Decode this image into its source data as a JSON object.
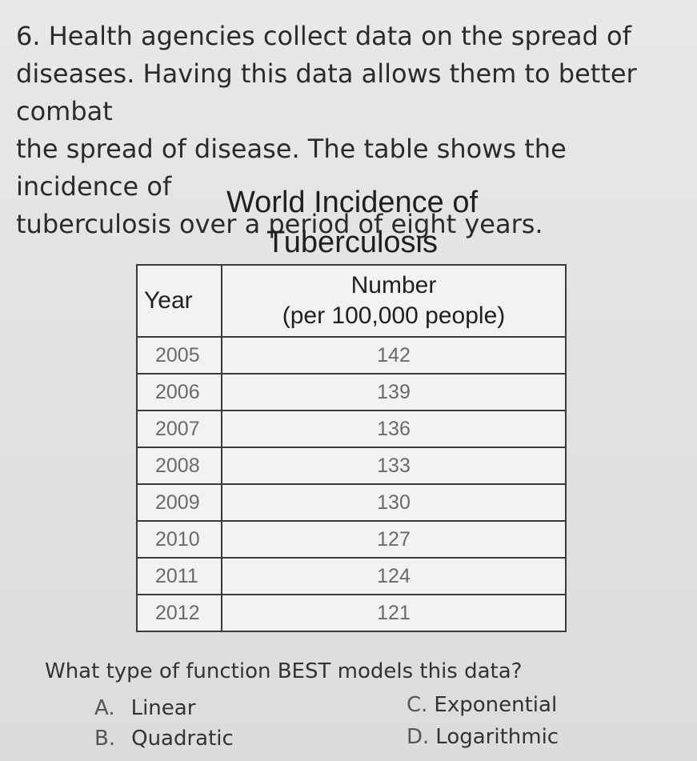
{
  "question": {
    "lines": [
      "6. Health agencies collect data on the spread of",
      "diseases. Having this data allows them to better combat",
      "the spread of disease. The table shows the incidence of",
      "tuberculosis over a period of eight years."
    ]
  },
  "table": {
    "title_lines": [
      "World Incidence of",
      "Tuberculosis"
    ],
    "headers": {
      "year": "Year",
      "number_line1": "Number",
      "number_line2": "(per 100,000 people)"
    },
    "rows": [
      {
        "year": "2005",
        "number": "142"
      },
      {
        "year": "2006",
        "number": "139"
      },
      {
        "year": "2007",
        "number": "136"
      },
      {
        "year": "2008",
        "number": "133"
      },
      {
        "year": "2009",
        "number": "130"
      },
      {
        "year": "2010",
        "number": "127"
      },
      {
        "year": "2011",
        "number": "124"
      },
      {
        "year": "2012",
        "number": "121"
      }
    ]
  },
  "prompt": "What type of function BEST models this data?",
  "choices": [
    {
      "letter": "A.",
      "text": "Linear"
    },
    {
      "letter": "B.",
      "text": "Quadratic"
    },
    {
      "letter": "C.",
      "text": "Exponential"
    },
    {
      "letter": "D.",
      "text": "Logarithmic"
    }
  ]
}
